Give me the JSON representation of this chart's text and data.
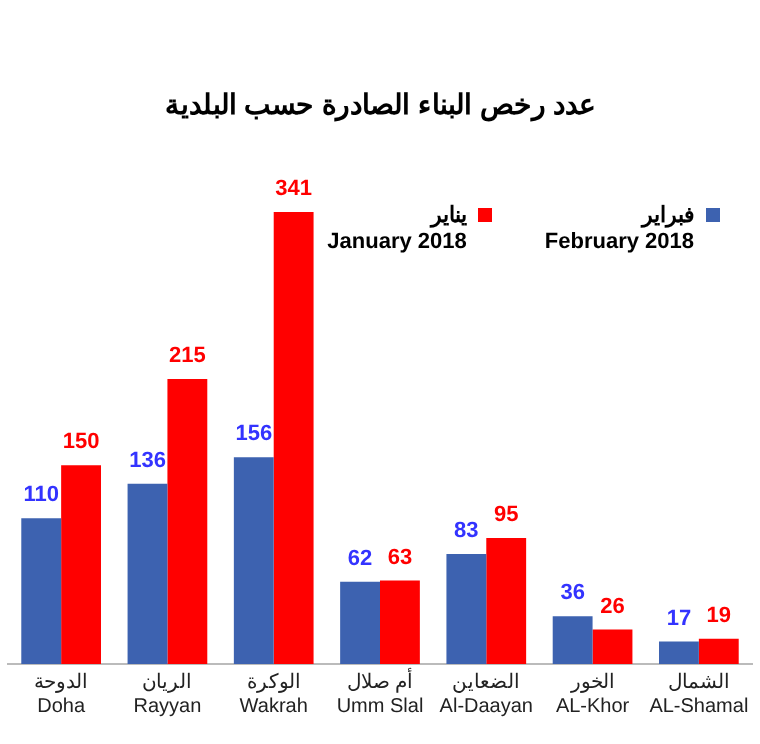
{
  "chart_data": {
    "type": "bar",
    "title": "عدد رخص البناء الصادرة حسب البلدية",
    "categories": [
      "الدوحة\nDoha",
      "الريان\nRayyan",
      "الوكرة\nWakrah",
      "أم صلال\nUmm Slal",
      "الضعاين\nAl-Daayan",
      "الخور\nAL-Khor",
      "الشمال\nAL-Shamal"
    ],
    "series": [
      {
        "name": "فبراير\nFebruary  2018",
        "color": "#3d62b0",
        "values": [
          110,
          136,
          156,
          62,
          83,
          36,
          17
        ]
      },
      {
        "name": "يناير\nJanuary  2018",
        "color": "#ff0000",
        "values": [
          150,
          215,
          341,
          63,
          95,
          26,
          19
        ]
      }
    ],
    "data_labels": true,
    "legend": "top right"
  }
}
